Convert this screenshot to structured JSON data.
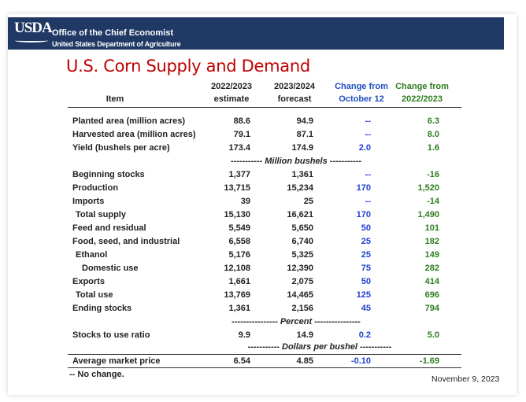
{
  "header": {
    "logo": "USDA",
    "office": "Office of the Chief Economist",
    "department": "United States Department of Agriculture"
  },
  "title": "U.S. Corn Supply and Demand",
  "columns": {
    "item": "Item",
    "c1": [
      "2022/2023",
      "estimate"
    ],
    "c2": [
      "2023/2024",
      "forecast"
    ],
    "c3": [
      "Change from",
      "October 12"
    ],
    "c4": [
      "Change from",
      "2022/2023"
    ]
  },
  "units": {
    "million_bushels": "----------- Million bushels -----------",
    "percent": "---------------- Percent ----------------",
    "dollars": "----------- Dollars per bushel -----------"
  },
  "rows": [
    {
      "label": "Planted area (million acres)",
      "v1": "88.6",
      "v2": "94.9",
      "v3": "--",
      "v4": "6.3"
    },
    {
      "label": "Harvested area (million acres)",
      "v1": "79.1",
      "v2": "87.1",
      "v3": "--",
      "v4": "8.0"
    },
    {
      "label": "Yield (bushels per acre)",
      "v1": "173.4",
      "v2": "174.9",
      "v3": "2.0",
      "v4": "1.6"
    },
    {
      "label": "Beginning stocks",
      "v1": "1,377",
      "v2": "1,361",
      "v3": "--",
      "v4": "-16"
    },
    {
      "label": "Production",
      "v1": "13,715",
      "v2": "15,234",
      "v3": "170",
      "v4": "1,520"
    },
    {
      "label": "Imports",
      "v1": "39",
      "v2": "25",
      "v3": "--",
      "v4": "-14"
    },
    {
      "label": "Total supply",
      "v1": "15,130",
      "v2": "16,621",
      "v3": "170",
      "v4": "1,490"
    },
    {
      "label": "Feed and residual",
      "v1": "5,549",
      "v2": "5,650",
      "v3": "50",
      "v4": "101"
    },
    {
      "label": "Food, seed, and industrial",
      "v1": "6,558",
      "v2": "6,740",
      "v3": "25",
      "v4": "182"
    },
    {
      "label": "Ethanol",
      "v1": "5,176",
      "v2": "5,325",
      "v3": "25",
      "v4": "149"
    },
    {
      "label": "Domestic use",
      "v1": "12,108",
      "v2": "12,390",
      "v3": "75",
      "v4": "282"
    },
    {
      "label": "Exports",
      "v1": "1,661",
      "v2": "2,075",
      "v3": "50",
      "v4": "414"
    },
    {
      "label": "Total use",
      "v1": "13,769",
      "v2": "14,465",
      "v3": "125",
      "v4": "696"
    },
    {
      "label": "Ending stocks",
      "v1": "1,361",
      "v2": "2,156",
      "v3": "45",
      "v4": "794"
    },
    {
      "label": "Stocks to use ratio",
      "v1": "9.9",
      "v2": "14.9",
      "v3": "0.2",
      "v4": "5.0"
    },
    {
      "label": "Average market price",
      "v1": "6.54",
      "v2": "4.85",
      "v3": "-0.10",
      "v4": "-1.69"
    }
  ],
  "footnote": "-- No change.",
  "date": "November 9, 2023"
}
